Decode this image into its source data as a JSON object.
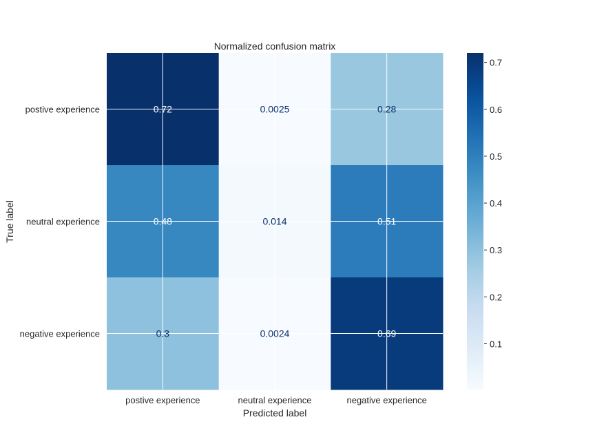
{
  "chart_data": {
    "type": "heatmap",
    "title": "Normalized confusion matrix",
    "xlabel": "Predicted label",
    "ylabel": "True label",
    "x_categories": [
      "postive experience",
      "neutral experience",
      "negative experience"
    ],
    "y_categories": [
      "postive experience",
      "neutral experience",
      "negative experience"
    ],
    "values": [
      [
        0.72,
        0.0025,
        0.28
      ],
      [
        0.48,
        0.014,
        0.51
      ],
      [
        0.3,
        0.0024,
        0.69
      ]
    ],
    "value_labels": [
      [
        "0.72",
        "0.0025",
        "0.28"
      ],
      [
        "0.48",
        "0.014",
        "0.51"
      ],
      [
        "0.3",
        "0.0024",
        "0.69"
      ]
    ],
    "colormap": "Blues",
    "color_range": [
      0.0024,
      0.72
    ],
    "colorbar": {
      "ticks": [
        0.1,
        0.2,
        0.3,
        0.4,
        0.5,
        0.6,
        0.7
      ],
      "tick_labels": [
        "0.1",
        "0.2",
        "0.3",
        "0.4",
        "0.5",
        "0.6",
        "0.7"
      ],
      "placement": "right"
    },
    "grid": true,
    "text_colors": {
      "dark": "#08306b",
      "light": "#ffffff"
    }
  }
}
